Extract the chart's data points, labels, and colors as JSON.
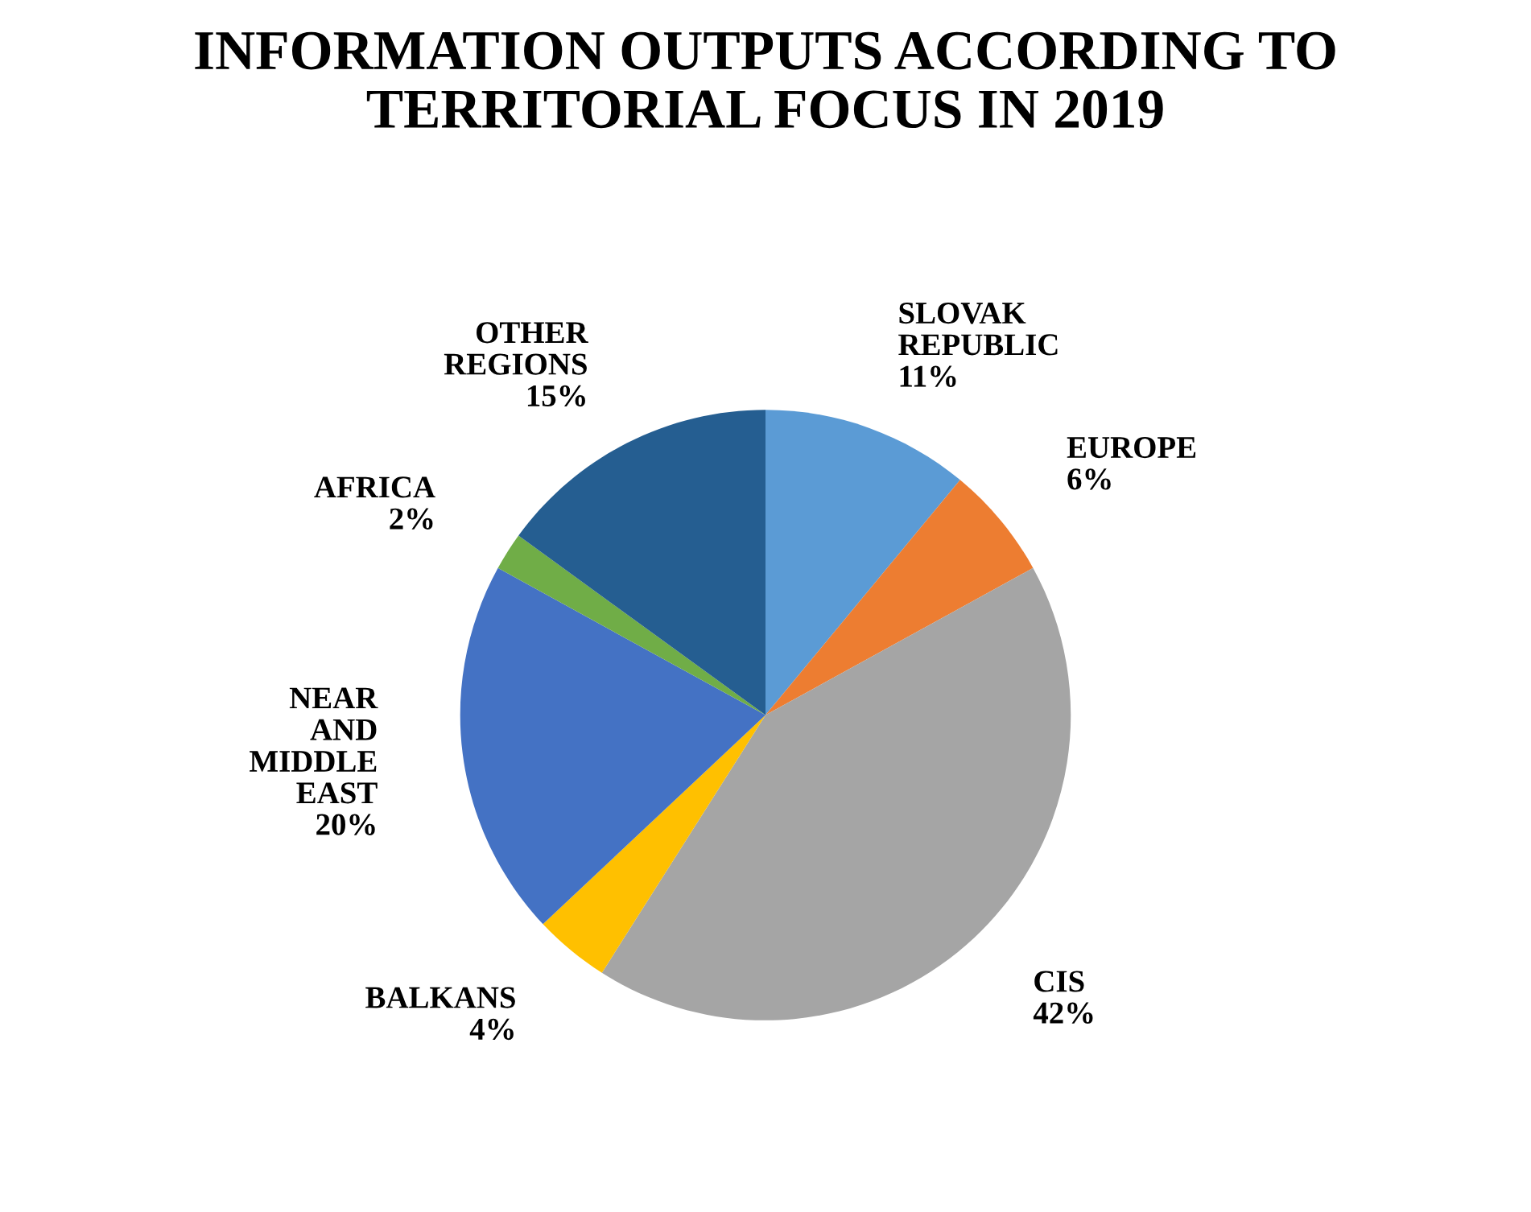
{
  "chart_data": {
    "type": "pie",
    "title": "INFORMATION OUTPUTS ACCORDING TO TERRITORIAL FOCUS IN 2019",
    "categories": [
      "SLOVAK REPUBLIC",
      "EUROPE",
      "CIS",
      "BALKANS",
      "NEAR AND MIDDLE EAST",
      "AFRICA",
      "OTHER REGIONS"
    ],
    "values": [
      11,
      6,
      42,
      4,
      20,
      2,
      15
    ],
    "value_labels": [
      "11%",
      "6%",
      "42%",
      "4%",
      "20%",
      "2%",
      "15%"
    ],
    "colors": [
      "#5b9bd5",
      "#ed7d31",
      "#a5a5a5",
      "#ffc000",
      "#4472c4",
      "#70ad47",
      "#255e91"
    ],
    "legend": false
  }
}
